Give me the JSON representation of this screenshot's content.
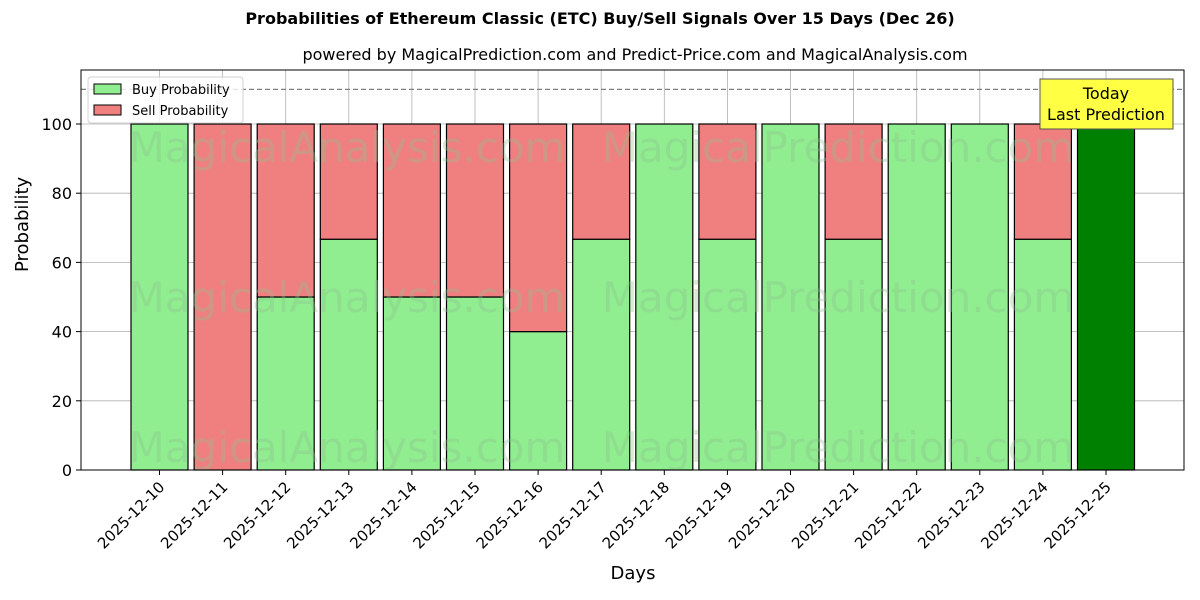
{
  "chart_data": {
    "type": "bar",
    "stacked": true,
    "title": "Probabilities of Ethereum Classic (ETC) Buy/Sell Signals Over 15 Days (Dec 26)",
    "subtitle": "powered by MagicalPrediction.com and Predict-Price.com and MagicalAnalysis.com",
    "xlabel": "Days",
    "ylabel": "Probability",
    "ylim": [
      0,
      115
    ],
    "yticks": [
      0,
      20,
      40,
      60,
      80,
      100
    ],
    "grid": true,
    "legend_position": "upper left",
    "reference_line": {
      "y": 110,
      "style": "dashed",
      "color": "#808080"
    },
    "categories": [
      "2025-12-10",
      "2025-12-11",
      "2025-12-12",
      "2025-12-13",
      "2025-12-14",
      "2025-12-15",
      "2025-12-16",
      "2025-12-17",
      "2025-12-18",
      "2025-12-19",
      "2025-12-20",
      "2025-12-21",
      "2025-12-22",
      "2025-12-23",
      "2025-12-24",
      "2025-12-25"
    ],
    "series": [
      {
        "name": "Buy Probability",
        "color": "#90ee90",
        "values": [
          100,
          0,
          50,
          66.7,
          50,
          50,
          40,
          66.7,
          100,
          66.7,
          100,
          66.7,
          100,
          100,
          66.7,
          100
        ]
      },
      {
        "name": "Sell Probability",
        "color": "#f08080",
        "values": [
          0,
          100,
          50,
          33.3,
          50,
          50,
          60,
          33.3,
          0,
          33.3,
          0,
          33.3,
          0,
          0,
          33.3,
          0
        ]
      }
    ],
    "highlight": {
      "index": 15,
      "color": "#008000"
    },
    "annotation": {
      "text_line1": "Today",
      "text_line2": "Last Prediction",
      "background": "#ffff44"
    },
    "watermarks": [
      "MagicalAnalysis.com",
      "MagicalPrediction.com"
    ]
  }
}
